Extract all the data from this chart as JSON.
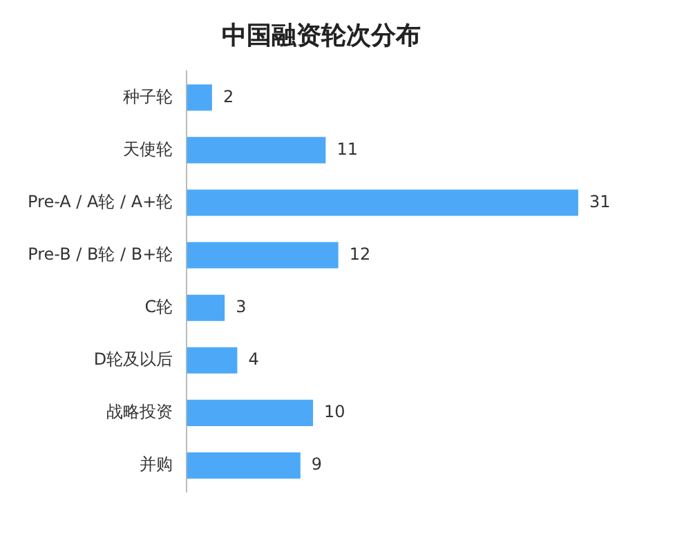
{
  "chart_data": {
    "type": "bar",
    "orientation": "horizontal",
    "title": "中国融资轮次分布",
    "categories": [
      "种子轮",
      "天使轮",
      "Pre-A / A轮 / A+轮",
      "Pre-B / B轮 / B+轮",
      "C轮",
      "D轮及以后",
      "战略投资",
      "并购"
    ],
    "values": [
      2,
      11,
      31,
      12,
      3,
      4,
      10,
      9
    ],
    "color": "#4da9f7",
    "data_labels": true,
    "tick_labels": "y"
  }
}
